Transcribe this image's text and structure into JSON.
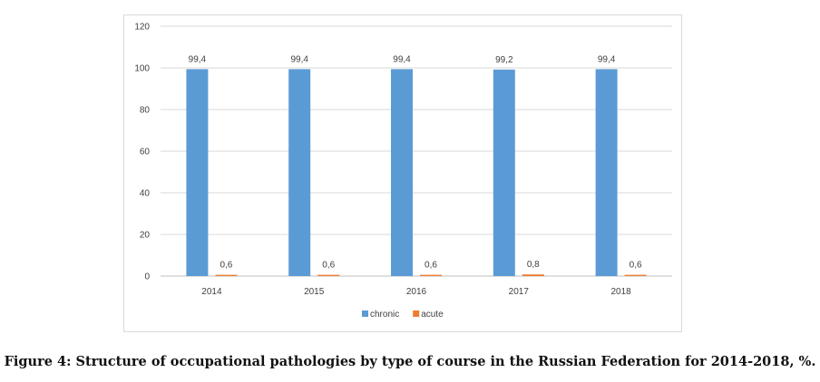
{
  "chart_data": {
    "type": "bar",
    "categories": [
      "2014",
      "2015",
      "2016",
      "2017",
      "2018"
    ],
    "series": [
      {
        "name": "chronic",
        "color": "#5b9bd5",
        "values": [
          99.4,
          99.4,
          99.4,
          99.2,
          99.4
        ],
        "labels": [
          "99,4",
          "99,4",
          "99,4",
          "99,2",
          "99,4"
        ]
      },
      {
        "name": "acute",
        "color": "#ed7d31",
        "values": [
          0.6,
          0.6,
          0.6,
          0.8,
          0.6
        ],
        "labels": [
          "0,6",
          "0,6",
          "0,6",
          "0,8",
          "0,6"
        ]
      }
    ],
    "ylim": [
      0,
      120
    ],
    "yticks": [
      0,
      20,
      40,
      60,
      80,
      100,
      120
    ],
    "grid": true,
    "legend": "bottom",
    "title": "",
    "xlabel": "",
    "ylabel": ""
  },
  "caption": "Figure 4: Structure of occupational pathologies by type of course in the Russian Federation for 2014-2018, %."
}
